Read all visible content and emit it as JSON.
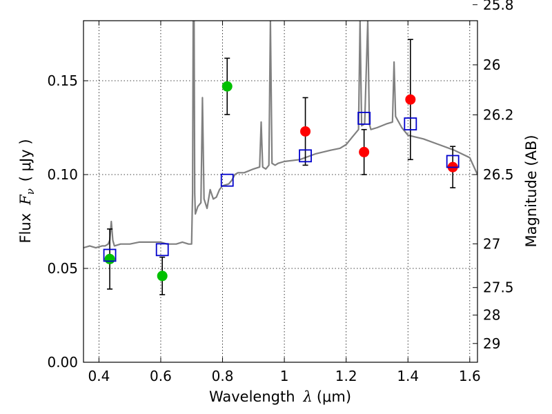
{
  "chart_data": {
    "type": "scatter",
    "xlabel": {
      "prefix": "Wavelength",
      "symbol": "λ",
      "unit": "(μm)"
    },
    "ylabel": {
      "prefix": "Flux",
      "symbol": "F",
      "subscript": "ν",
      "unit": "( μJy )"
    },
    "y2label": "Magnitude (AB)",
    "xlim": [
      0.35,
      1.625
    ],
    "ylim": [
      0.0,
      0.182
    ],
    "x_ticks": [
      {
        "value": 0.4,
        "label": "0.4"
      },
      {
        "value": 0.6,
        "label": "0.6"
      },
      {
        "value": 0.8,
        "label": "0.8"
      },
      {
        "value": 1.0,
        "label": "1"
      },
      {
        "value": 1.2,
        "label": "1.2"
      },
      {
        "value": 1.4,
        "label": "1.4"
      },
      {
        "value": 1.6,
        "label": "1.6"
      }
    ],
    "y_ticks": [
      {
        "value": 0.0,
        "label": "0.00"
      },
      {
        "value": 0.05,
        "label": "0.05"
      },
      {
        "value": 0.1,
        "label": "0.10"
      },
      {
        "value": 0.15,
        "label": "0.15"
      }
    ],
    "y2_ticks": [
      {
        "mag": 25.8,
        "label": "25.8"
      },
      {
        "mag": 26.0,
        "label": "26"
      },
      {
        "mag": 26.2,
        "label": "26.2"
      },
      {
        "mag": 26.5,
        "label": "26.5"
      },
      {
        "mag": 27.0,
        "label": "27"
      },
      {
        "mag": 27.5,
        "label": "27.5"
      },
      {
        "mag": 28.0,
        "label": "28"
      },
      {
        "mag": 29.0,
        "label": "29"
      }
    ],
    "grid": true,
    "colors": {
      "model": "#808080",
      "green": "#00c000",
      "red": "#ff0000",
      "synthetic": "#0000cc",
      "errorbar": "#000000"
    },
    "series": [
      {
        "kind": "model-spectrum",
        "x": [
          0.35,
          0.37,
          0.39,
          0.41,
          0.42,
          0.43,
          0.435,
          0.44,
          0.445,
          0.45,
          0.47,
          0.5,
          0.53,
          0.56,
          0.59,
          0.6,
          0.62,
          0.65,
          0.67,
          0.69,
          0.7,
          0.703,
          0.705,
          0.708,
          0.71,
          0.712,
          0.72,
          0.73,
          0.735,
          0.74,
          0.75,
          0.76,
          0.77,
          0.78,
          0.79,
          0.8,
          0.82,
          0.83,
          0.84,
          0.85,
          0.87,
          0.9,
          0.92,
          0.925,
          0.93,
          0.94,
          0.95,
          0.955,
          0.96,
          0.97,
          0.98,
          1.0,
          1.05,
          1.1,
          1.15,
          1.18,
          1.2,
          1.22,
          1.24,
          1.245,
          1.25,
          1.26,
          1.27,
          1.275,
          1.28,
          1.3,
          1.33,
          1.35,
          1.355,
          1.36,
          1.38,
          1.4,
          1.45,
          1.5,
          1.55,
          1.6,
          1.625
        ],
        "y": [
          0.061,
          0.062,
          0.061,
          0.062,
          0.062,
          0.063,
          0.065,
          0.075,
          0.065,
          0.062,
          0.063,
          0.063,
          0.064,
          0.064,
          0.064,
          0.064,
          0.063,
          0.063,
          0.064,
          0.063,
          0.063,
          0.09,
          0.182,
          0.182,
          0.09,
          0.079,
          0.083,
          0.085,
          0.141,
          0.087,
          0.082,
          0.092,
          0.087,
          0.088,
          0.092,
          0.094,
          0.095,
          0.097,
          0.1,
          0.101,
          0.101,
          0.103,
          0.104,
          0.128,
          0.104,
          0.103,
          0.105,
          0.182,
          0.106,
          0.105,
          0.106,
          0.107,
          0.108,
          0.111,
          0.113,
          0.114,
          0.116,
          0.12,
          0.124,
          0.182,
          0.126,
          0.127,
          0.182,
          0.127,
          0.124,
          0.125,
          0.127,
          0.128,
          0.16,
          0.131,
          0.125,
          0.121,
          0.119,
          0.116,
          0.113,
          0.109,
          0.1
        ]
      },
      {
        "kind": "green-points",
        "x": [
          0.435,
          0.605,
          0.815
        ],
        "y": [
          0.055,
          0.046,
          0.147
        ],
        "err": [
          0.016,
          0.01,
          0.015
        ]
      },
      {
        "kind": "red-points",
        "x": [
          1.068,
          1.258,
          1.408,
          1.545
        ],
        "y": [
          0.123,
          0.112,
          0.14,
          0.104
        ],
        "err": [
          0.018,
          0.012,
          0.032,
          0.011
        ]
      },
      {
        "kind": "synthetic-photometry",
        "x": [
          0.435,
          0.605,
          0.815,
          1.068,
          1.258,
          1.408,
          1.545
        ],
        "y": [
          0.057,
          0.06,
          0.097,
          0.11,
          0.13,
          0.127,
          0.107
        ]
      }
    ]
  }
}
